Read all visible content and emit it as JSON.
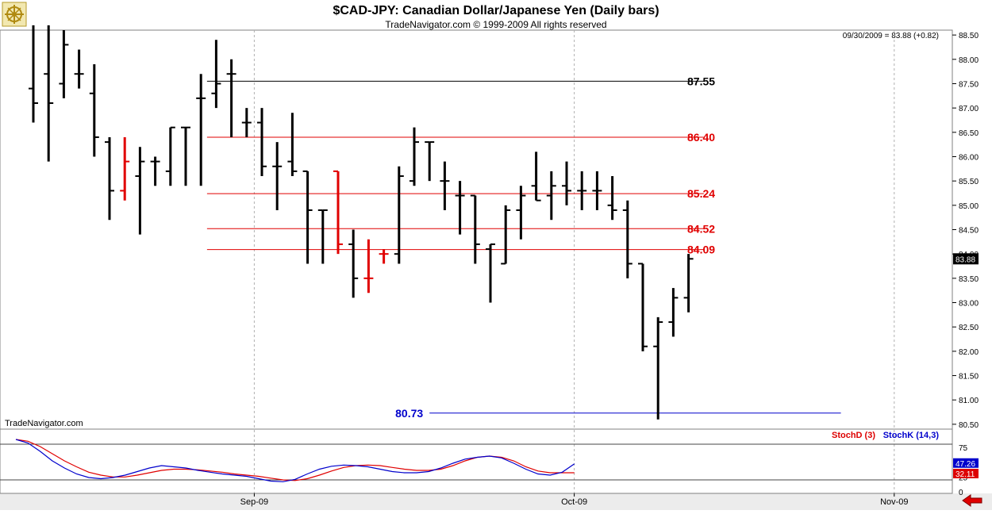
{
  "header": {
    "title": "$CAD-JPY:  Canadian Dollar/Japanese Yen  (Daily bars)",
    "copyright": "TradeNavigator.com © 1999-2009 All rights reserved",
    "quote": "09/30/2009 = 83.88 (+0.82)",
    "watermark": "TradeNavigator.com",
    "logo_icon": "ship-wheel-logo-icon",
    "nav_icon": "scroll-left-arrow-icon"
  },
  "colors": {
    "up_bar": "#000000",
    "down_bar": "#e00000",
    "resistance": "#cc0000",
    "support": "#0000cc",
    "stoch_d": "#dd0000",
    "stoch_k": "#0000cc"
  },
  "chart_data": [
    {
      "type": "ohlc",
      "title": "$CAD-JPY:  Canadian Dollar/Japanese Yen  (Daily bars)",
      "ylim": [
        80.4,
        88.6
      ],
      "y_ticks": [
        "88.50",
        "88.00",
        "87.50",
        "87.00",
        "86.50",
        "86.00",
        "85.50",
        "85.00",
        "84.50",
        "84.00",
        "83.50",
        "83.00",
        "82.50",
        "82.00",
        "81.50",
        "81.00",
        "80.50"
      ],
      "x_ticks": [
        {
          "label": "Sep-09",
          "index": 14.5
        },
        {
          "label": "Oct-09",
          "index": 35.5
        },
        {
          "label": "Nov-09",
          "index": 56.5
        }
      ],
      "last_price_label": "83.88",
      "bars": [
        {
          "o": 87.4,
          "h": 88.7,
          "l": 86.7,
          "c": 87.1,
          "color": "black"
        },
        {
          "o": 87.7,
          "h": 88.7,
          "l": 85.9,
          "c": 87.1,
          "color": "black"
        },
        {
          "o": 87.5,
          "h": 88.6,
          "l": 87.2,
          "c": 88.3,
          "color": "black"
        },
        {
          "o": 87.7,
          "h": 88.2,
          "l": 87.4,
          "c": 87.7,
          "color": "black"
        },
        {
          "o": 87.3,
          "h": 87.9,
          "l": 86.0,
          "c": 86.4,
          "color": "black"
        },
        {
          "o": 86.3,
          "h": 86.4,
          "l": 84.7,
          "c": 85.3,
          "color": "black"
        },
        {
          "o": 85.3,
          "h": 86.4,
          "l": 85.1,
          "c": 85.9,
          "color": "red"
        },
        {
          "o": 85.6,
          "h": 86.2,
          "l": 84.4,
          "c": 85.9,
          "color": "black"
        },
        {
          "o": 85.9,
          "h": 86.0,
          "l": 85.4,
          "c": 85.9,
          "color": "black"
        },
        {
          "o": 85.7,
          "h": 86.6,
          "l": 85.4,
          "c": 86.6,
          "color": "black"
        },
        {
          "o": 86.6,
          "h": 86.6,
          "l": 85.4,
          "c": 86.6,
          "color": "black"
        },
        {
          "o": 87.2,
          "h": 87.7,
          "l": 85.4,
          "c": 87.2,
          "color": "black"
        },
        {
          "o": 87.3,
          "h": 88.4,
          "l": 87.0,
          "c": 87.5,
          "color": "black"
        },
        {
          "o": 87.7,
          "h": 88.0,
          "l": 86.4,
          "c": 87.7,
          "color": "black"
        },
        {
          "o": 86.7,
          "h": 87.0,
          "l": 86.4,
          "c": 86.7,
          "color": "black"
        },
        {
          "o": 86.7,
          "h": 87.0,
          "l": 85.6,
          "c": 85.8,
          "color": "black"
        },
        {
          "o": 85.8,
          "h": 86.3,
          "l": 84.9,
          "c": 85.8,
          "color": "black"
        },
        {
          "o": 85.9,
          "h": 86.9,
          "l": 85.6,
          "c": 85.7,
          "color": "black"
        },
        {
          "o": 85.7,
          "h": 85.7,
          "l": 83.8,
          "c": 84.9,
          "color": "black"
        },
        {
          "o": 84.9,
          "h": 84.9,
          "l": 83.8,
          "c": 84.9,
          "color": "black"
        },
        {
          "o": 85.7,
          "h": 85.7,
          "l": 84.0,
          "c": 84.2,
          "color": "red"
        },
        {
          "o": 84.2,
          "h": 84.5,
          "l": 83.1,
          "c": 83.5,
          "color": "black"
        },
        {
          "o": 83.5,
          "h": 84.3,
          "l": 83.2,
          "c": 83.5,
          "color": "red"
        },
        {
          "o": 84.0,
          "h": 84.1,
          "l": 83.8,
          "c": 84.0,
          "color": "red"
        },
        {
          "o": 84.0,
          "h": 85.8,
          "l": 83.8,
          "c": 85.6,
          "color": "black"
        },
        {
          "o": 85.5,
          "h": 86.6,
          "l": 85.4,
          "c": 86.3,
          "color": "black"
        },
        {
          "o": 86.3,
          "h": 86.3,
          "l": 85.5,
          "c": 86.3,
          "color": "black"
        },
        {
          "o": 85.5,
          "h": 85.9,
          "l": 84.9,
          "c": 85.5,
          "color": "black"
        },
        {
          "o": 85.2,
          "h": 85.5,
          "l": 84.4,
          "c": 85.2,
          "color": "black"
        },
        {
          "o": 85.2,
          "h": 85.2,
          "l": 83.8,
          "c": 84.2,
          "color": "black"
        },
        {
          "o": 84.1,
          "h": 84.2,
          "l": 83.0,
          "c": 84.2,
          "color": "black"
        },
        {
          "o": 83.8,
          "h": 85.0,
          "l": 83.8,
          "c": 84.9,
          "color": "black"
        },
        {
          "o": 84.9,
          "h": 85.4,
          "l": 84.3,
          "c": 85.2,
          "color": "black"
        },
        {
          "o": 85.4,
          "h": 86.1,
          "l": 85.1,
          "c": 85.1,
          "color": "black"
        },
        {
          "o": 85.2,
          "h": 85.7,
          "l": 84.7,
          "c": 85.4,
          "color": "black"
        },
        {
          "o": 85.4,
          "h": 85.9,
          "l": 85.0,
          "c": 85.3,
          "color": "black"
        },
        {
          "o": 85.3,
          "h": 85.7,
          "l": 84.9,
          "c": 85.3,
          "color": "black"
        },
        {
          "o": 85.3,
          "h": 85.7,
          "l": 84.9,
          "c": 85.3,
          "color": "black"
        },
        {
          "o": 85.0,
          "h": 85.6,
          "l": 84.7,
          "c": 84.9,
          "color": "black"
        },
        {
          "o": 84.9,
          "h": 85.1,
          "l": 83.5,
          "c": 83.8,
          "color": "black"
        },
        {
          "o": 83.8,
          "h": 83.8,
          "l": 82.0,
          "c": 82.1,
          "color": "black"
        },
        {
          "o": 82.1,
          "h": 82.7,
          "l": 80.6,
          "c": 82.6,
          "color": "black"
        },
        {
          "o": 82.6,
          "h": 83.3,
          "l": 82.3,
          "c": 83.1,
          "color": "black"
        },
        {
          "o": 83.1,
          "h": 84.0,
          "l": 82.8,
          "c": 83.9,
          "color": "black"
        }
      ],
      "levels": [
        {
          "value": 87.55,
          "label": "87.55",
          "color": "black",
          "from": 11.4,
          "to": 44.0
        },
        {
          "value": 86.4,
          "label": "86.40",
          "color": "red",
          "from": 11.4,
          "to": 44.0
        },
        {
          "value": 85.24,
          "label": "85.24",
          "color": "red",
          "from": 11.4,
          "to": 44.0
        },
        {
          "value": 84.52,
          "label": "84.52",
          "color": "red",
          "from": 11.4,
          "to": 44.0
        },
        {
          "value": 84.09,
          "label": "84.09",
          "color": "red",
          "from": 11.4,
          "to": 44.0
        },
        {
          "value": 80.73,
          "label": "80.73",
          "color": "blue",
          "from": 26.0,
          "to": 53.0
        }
      ]
    },
    {
      "type": "line",
      "legend": [
        "StochD (3)",
        "StochK (14,3)"
      ],
      "ylim": [
        0,
        100
      ],
      "y_ticks": [
        "75",
        "25",
        "0"
      ],
      "reference_lines": [
        80,
        20
      ],
      "last_values": [
        "47.26",
        "32.11"
      ],
      "series": [
        {
          "name": "StochD (3)",
          "color": "red",
          "values": [
            88,
            85,
            76,
            64,
            52,
            42,
            33,
            28,
            25,
            25,
            28,
            32,
            36,
            38,
            38,
            37,
            35,
            33,
            30,
            28,
            26,
            23,
            20,
            19,
            22,
            28,
            35,
            41,
            44,
            45,
            44,
            41,
            38,
            36,
            36,
            38,
            44,
            52,
            58,
            60,
            58,
            52,
            42,
            35,
            32,
            32,
            32
          ]
        },
        {
          "name": "StochK (14,3)",
          "color": "blue",
          "values": [
            88,
            82,
            68,
            52,
            40,
            30,
            24,
            22,
            24,
            28,
            34,
            40,
            44,
            42,
            40,
            36,
            33,
            30,
            28,
            26,
            22,
            18,
            17,
            21,
            30,
            38,
            43,
            45,
            44,
            42,
            38,
            34,
            32,
            32,
            34,
            40,
            48,
            55,
            58,
            60,
            57,
            48,
            38,
            30,
            28,
            33,
            47
          ]
        }
      ]
    }
  ],
  "footer": {
    "x_labels": [
      "Sep-09",
      "Oct-09",
      "Nov-09"
    ]
  }
}
